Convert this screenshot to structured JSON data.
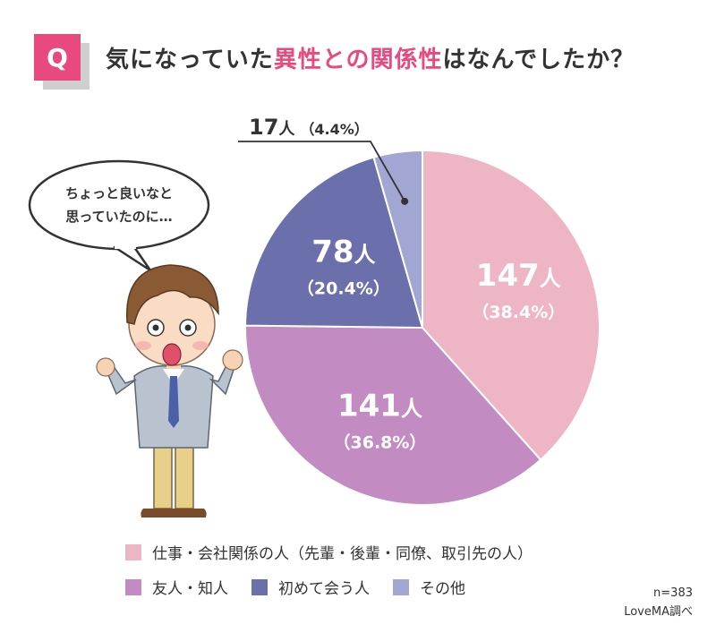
{
  "header": {
    "badge": "Q",
    "title_parts": [
      {
        "text": "気になっていた",
        "highlight": false
      },
      {
        "text": "異性との関係性",
        "highlight": true
      },
      {
        "text": "はなんでしたか？",
        "highlight": false
      }
    ]
  },
  "speech_bubble": {
    "line1": "ちょっと良いなと",
    "line2": "思っていたのに…"
  },
  "colors": {
    "accent": "#e8497f",
    "badge_shadow": "#cfcfcf",
    "text": "#333333"
  },
  "chart_data": {
    "type": "pie",
    "title": "気になっていた異性との関係性はなんでしたか？",
    "start": "12 o'clock",
    "direction": "clockwise",
    "n": 383,
    "slices": [
      {
        "label": "仕事・会社関係の人（先輩・後輩・同僚、取引先の人）",
        "count": 147,
        "unit": "人",
        "percent": 38.4,
        "percent_text": "（38.4%）",
        "color": "#eeb5c5",
        "label_color": "#ffffff",
        "label_position": "inside"
      },
      {
        "label": "友人・知人",
        "count": 141,
        "unit": "人",
        "percent": 36.8,
        "percent_text": "（36.8%）",
        "color": "#c28bc2",
        "label_color": "#ffffff",
        "label_position": "inside"
      },
      {
        "label": "初めて会う人",
        "count": 78,
        "unit": "人",
        "percent": 20.4,
        "percent_text": "（20.4%）",
        "color": "#6b6fab",
        "label_color": "#ffffff",
        "label_position": "inside"
      },
      {
        "label": "その他",
        "count": 17,
        "unit": "人",
        "percent": 4.4,
        "percent_text": "（4.4%）",
        "color": "#a2a6d3",
        "label_color": "#333333",
        "label_position": "callout"
      }
    ]
  },
  "legend": {
    "rows": [
      [
        0
      ],
      [
        1,
        2,
        3
      ]
    ]
  },
  "footer": {
    "sample": "n=383",
    "source": "LoveMA調べ"
  }
}
